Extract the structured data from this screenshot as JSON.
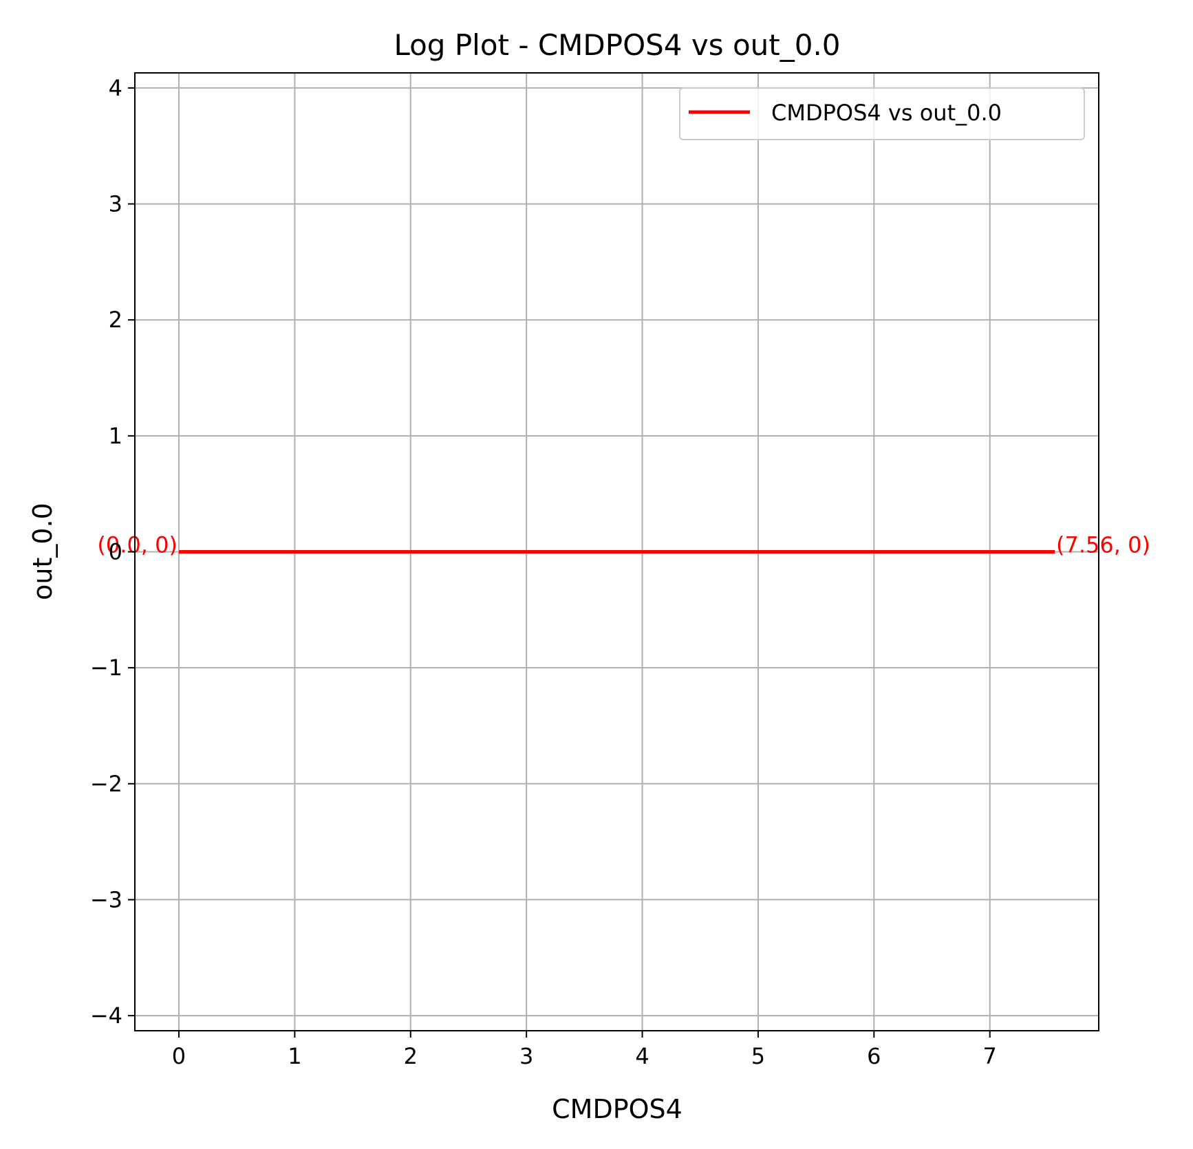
{
  "chart_data": {
    "type": "line",
    "title": "Log Plot - CMDPOS4 vs out_0.0",
    "xlabel": "CMDPOS4",
    "ylabel": "out_0.0",
    "xlim": [
      -0.38,
      7.94
    ],
    "ylim": [
      -4.13,
      4.13
    ],
    "x_ticks": [
      0,
      1,
      2,
      3,
      4,
      5,
      6,
      7
    ],
    "x_tick_labels": [
      "0",
      "1",
      "2",
      "3",
      "4",
      "5",
      "6",
      "7"
    ],
    "y_ticks": [
      -4,
      -3,
      -2,
      -1,
      0,
      1,
      2,
      3,
      4
    ],
    "y_tick_labels": [
      "−4",
      "−3",
      "−2",
      "−1",
      "0",
      "1",
      "2",
      "3",
      "4"
    ],
    "grid": true,
    "legend_position": "top-right",
    "series": [
      {
        "name": "CMDPOS4 vs out_0.0",
        "color": "#ff0000",
        "x": [
          0.0,
          7.56
        ],
        "y": [
          0,
          0
        ]
      }
    ],
    "annotations": [
      {
        "text": "(0.0, 0)",
        "x": 0.0,
        "y": 0,
        "anchor": "end",
        "color": "#ff0000"
      },
      {
        "text": "(7.56, 0)",
        "x": 7.56,
        "y": 0,
        "anchor": "start",
        "color": "#ff0000"
      }
    ]
  }
}
